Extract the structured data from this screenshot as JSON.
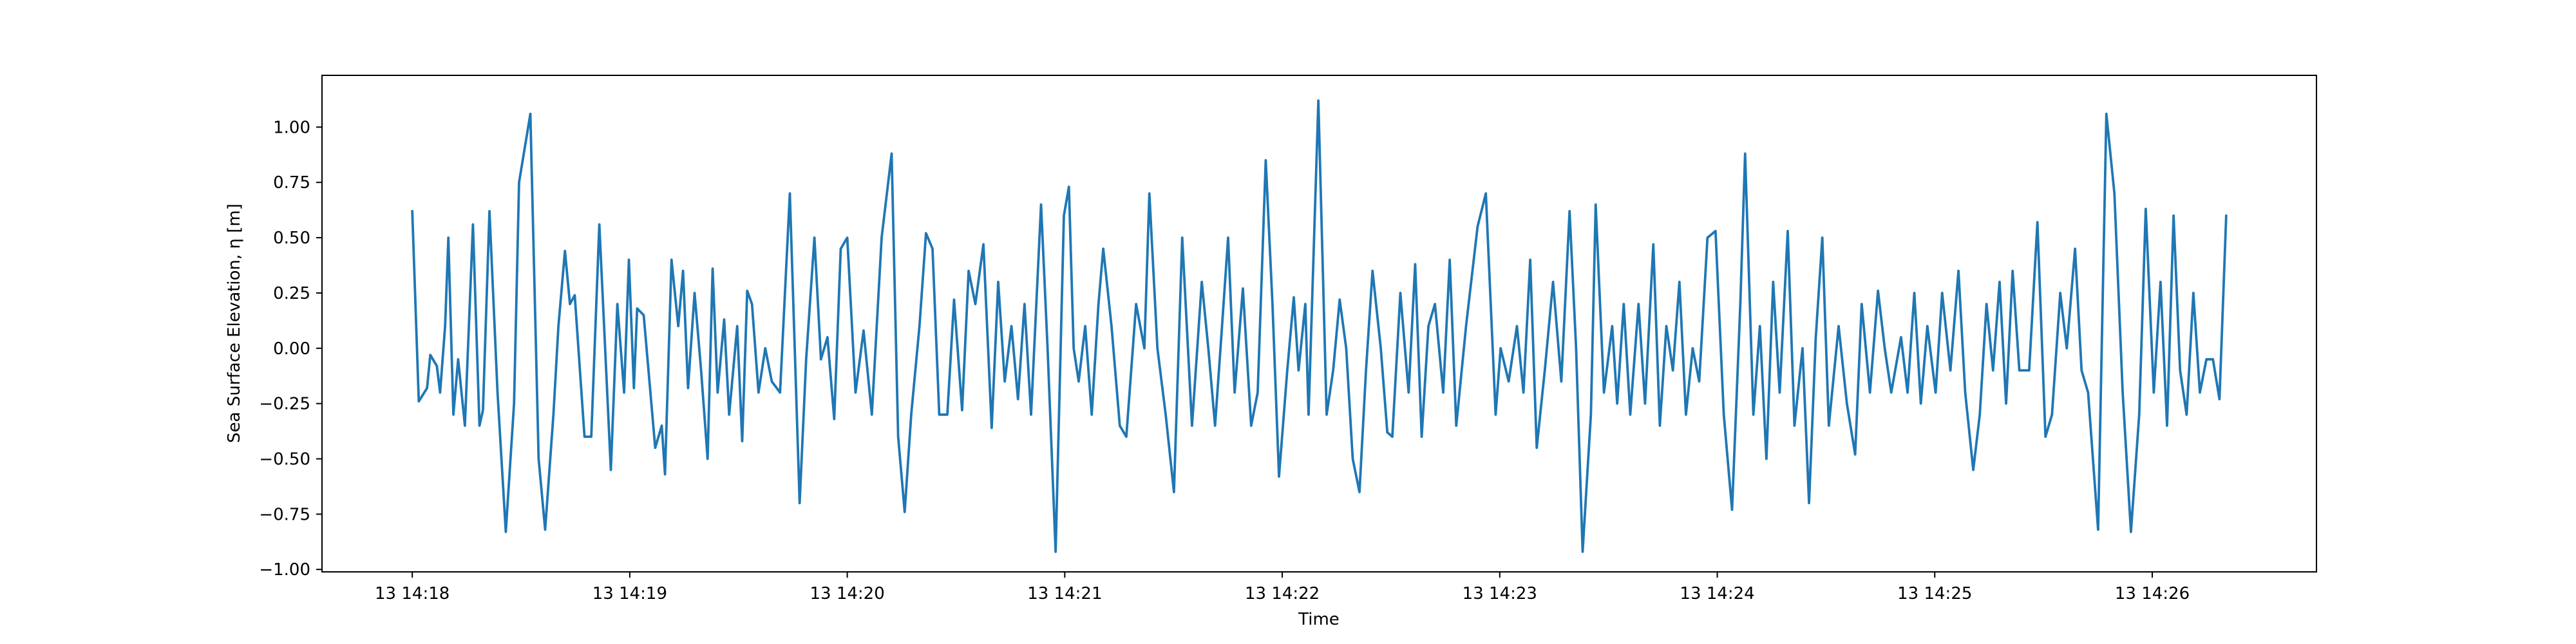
{
  "chart_data": {
    "type": "line",
    "xlabel": "Time",
    "ylabel": "Sea Surface Elevation, η [m]",
    "color": "#1f77b4",
    "xlim": [
      857.585,
      866.755
    ],
    "ylim": [
      -1.011,
      1.234
    ],
    "xticks": [
      {
        "value": 858,
        "label": "13 14:18"
      },
      {
        "value": 859,
        "label": "13 14:19"
      },
      {
        "value": 860,
        "label": "13 14:20"
      },
      {
        "value": 861,
        "label": "13 14:21"
      },
      {
        "value": 862,
        "label": "13 14:22"
      },
      {
        "value": 863,
        "label": "13 14:23"
      },
      {
        "value": 864,
        "label": "13 14:24"
      },
      {
        "value": 865,
        "label": "13 14:25"
      },
      {
        "value": 866,
        "label": "13 14:26"
      }
    ],
    "yticks": [
      {
        "value": -1,
        "label": "−1.00"
      },
      {
        "value": -0.75,
        "label": "−0.75"
      },
      {
        "value": -0.5,
        "label": "−0.50"
      },
      {
        "value": -0.25,
        "label": "−0.25"
      },
      {
        "value": 0,
        "label": "0.00"
      },
      {
        "value": 0.25,
        "label": "0.25"
      },
      {
        "value": 0.5,
        "label": "0.50"
      },
      {
        "value": 0.75,
        "label": "0.75"
      },
      {
        "value": 1,
        "label": "1.00"
      }
    ],
    "x": [
      858.0,
      858.03,
      858.068,
      858.083,
      858.113,
      858.128,
      858.151,
      858.166,
      858.189,
      858.211,
      858.242,
      858.279,
      858.309,
      858.325,
      858.355,
      858.392,
      858.43,
      858.468,
      858.491,
      858.543,
      858.581,
      858.611,
      858.649,
      858.672,
      858.702,
      858.725,
      858.747,
      858.792,
      858.823,
      858.86,
      858.913,
      858.943,
      858.974,
      858.996,
      859.019,
      859.034,
      859.064,
      859.117,
      859.147,
      859.162,
      859.192,
      859.223,
      859.245,
      859.268,
      859.298,
      859.328,
      859.358,
      859.381,
      859.404,
      859.434,
      859.457,
      859.494,
      859.517,
      859.54,
      859.562,
      859.592,
      859.623,
      859.653,
      859.691,
      859.736,
      859.781,
      859.811,
      859.849,
      859.879,
      859.909,
      859.94,
      859.97,
      860.0,
      860.038,
      860.075,
      860.113,
      860.158,
      860.204,
      860.234,
      860.264,
      860.294,
      860.332,
      860.362,
      860.392,
      860.423,
      860.46,
      860.491,
      860.528,
      860.558,
      860.589,
      860.626,
      860.664,
      860.694,
      860.724,
      860.755,
      860.785,
      860.815,
      860.845,
      860.891,
      860.921,
      860.958,
      860.996,
      861.019,
      861.041,
      861.064,
      861.094,
      861.124,
      861.155,
      861.177,
      861.215,
      861.253,
      861.283,
      861.328,
      861.366,
      861.389,
      861.426,
      861.464,
      861.502,
      861.54,
      861.585,
      861.63,
      861.66,
      861.691,
      861.721,
      861.751,
      861.781,
      861.819,
      861.857,
      861.887,
      861.924,
      861.955,
      861.985,
      862.023,
      862.053,
      862.075,
      862.106,
      862.121,
      862.166,
      862.204,
      862.234,
      862.264,
      862.294,
      862.324,
      862.355,
      862.385,
      862.415,
      862.453,
      862.483,
      862.506,
      862.543,
      862.581,
      862.611,
      862.641,
      862.672,
      862.702,
      862.74,
      862.77,
      862.8,
      862.845,
      862.898,
      862.936,
      862.981,
      863.004,
      863.041,
      863.079,
      863.109,
      863.14,
      863.17,
      863.207,
      863.245,
      863.283,
      863.321,
      863.351,
      863.381,
      863.419,
      863.441,
      863.479,
      863.517,
      863.54,
      863.57,
      863.6,
      863.638,
      863.668,
      863.706,
      863.736,
      863.766,
      863.796,
      863.826,
      863.856,
      863.887,
      863.917,
      863.955,
      863.992,
      864.03,
      864.068,
      864.106,
      864.128,
      864.166,
      864.196,
      864.226,
      864.257,
      864.287,
      864.324,
      864.355,
      864.392,
      864.422,
      864.453,
      864.483,
      864.513,
      864.558,
      864.596,
      864.634,
      864.664,
      864.702,
      864.739,
      864.77,
      864.8,
      864.845,
      864.875,
      864.906,
      864.936,
      864.966,
      865.004,
      865.034,
      865.072,
      865.109,
      865.14,
      865.177,
      865.207,
      865.238,
      865.268,
      865.298,
      865.328,
      865.358,
      865.389,
      865.434,
      865.472,
      865.509,
      865.539,
      865.577,
      865.607,
      865.645,
      865.675,
      865.705,
      865.751,
      865.789,
      865.826,
      865.864,
      865.902,
      865.94,
      865.97,
      866.007,
      866.038,
      866.068,
      866.098,
      866.128,
      866.158,
      866.189,
      866.219,
      866.249,
      866.279,
      866.309,
      866.34
    ],
    "values": [
      0.62,
      -0.24,
      -0.18,
      -0.03,
      -0.08,
      -0.2,
      0.1,
      0.5,
      -0.3,
      -0.05,
      -0.35,
      0.56,
      -0.35,
      -0.28,
      0.62,
      -0.2,
      -0.83,
      -0.25,
      0.75,
      1.06,
      -0.5,
      -0.82,
      -0.3,
      0.1,
      0.44,
      0.2,
      0.24,
      -0.4,
      -0.4,
      0.56,
      -0.55,
      0.2,
      -0.2,
      0.4,
      -0.18,
      0.18,
      0.15,
      -0.45,
      -0.35,
      -0.57,
      0.4,
      0.1,
      0.35,
      -0.18,
      0.25,
      -0.1,
      -0.5,
      0.36,
      -0.2,
      0.13,
      -0.3,
      0.1,
      -0.42,
      0.26,
      0.2,
      -0.2,
      0.0,
      -0.15,
      -0.2,
      0.7,
      -0.7,
      -0.05,
      0.5,
      -0.05,
      0.05,
      -0.32,
      0.45,
      0.5,
      -0.2,
      0.08,
      -0.3,
      0.5,
      0.88,
      -0.4,
      -0.74,
      -0.3,
      0.1,
      0.52,
      0.45,
      -0.3,
      -0.3,
      0.22,
      -0.28,
      0.35,
      0.2,
      0.47,
      -0.36,
      0.3,
      -0.15,
      0.1,
      -0.23,
      0.2,
      -0.3,
      0.65,
      0.0,
      -0.92,
      0.6,
      0.73,
      0.0,
      -0.15,
      0.1,
      -0.3,
      0.2,
      0.45,
      0.1,
      -0.35,
      -0.4,
      0.2,
      0.0,
      0.7,
      0.0,
      -0.3,
      -0.65,
      0.5,
      -0.35,
      0.3,
      0.0,
      -0.35,
      0.07,
      0.5,
      -0.2,
      0.27,
      -0.35,
      -0.2,
      0.85,
      0.2,
      -0.58,
      -0.1,
      0.23,
      -0.1,
      0.2,
      -0.3,
      1.12,
      -0.3,
      -0.1,
      0.22,
      0.0,
      -0.5,
      -0.65,
      -0.1,
      0.35,
      0.0,
      -0.38,
      -0.4,
      0.25,
      -0.2,
      0.38,
      -0.4,
      0.1,
      0.2,
      -0.2,
      0.4,
      -0.35,
      0.1,
      0.55,
      0.7,
      -0.3,
      0.0,
      -0.15,
      0.1,
      -0.2,
      0.4,
      -0.45,
      -0.1,
      0.3,
      -0.15,
      0.62,
      0.0,
      -0.92,
      -0.3,
      0.65,
      -0.2,
      0.1,
      -0.25,
      0.2,
      -0.3,
      0.2,
      -0.25,
      0.47,
      -0.35,
      0.1,
      -0.1,
      0.3,
      -0.3,
      0.0,
      -0.15,
      0.5,
      0.53,
      -0.3,
      -0.73,
      0.2,
      0.88,
      -0.3,
      0.1,
      -0.5,
      0.3,
      -0.2,
      0.53,
      -0.35,
      0.0,
      -0.7,
      0.05,
      0.5,
      -0.35,
      0.1,
      -0.25,
      -0.48,
      0.2,
      -0.2,
      0.26,
      0.0,
      -0.2,
      0.05,
      -0.2,
      0.25,
      -0.25,
      0.1,
      -0.2,
      0.25,
      -0.1,
      0.35,
      -0.2,
      -0.55,
      -0.3,
      0.2,
      -0.1,
      0.3,
      -0.25,
      0.35,
      -0.1,
      -0.1,
      0.57,
      -0.4,
      -0.3,
      0.25,
      0.0,
      0.45,
      -0.1,
      -0.2,
      -0.82,
      1.06,
      0.7,
      -0.2,
      -0.83,
      -0.3,
      0.63,
      -0.2,
      0.3,
      -0.35,
      0.6,
      -0.1,
      -0.3,
      0.25,
      -0.2,
      -0.05,
      -0.05,
      -0.23,
      0.6
    ]
  }
}
